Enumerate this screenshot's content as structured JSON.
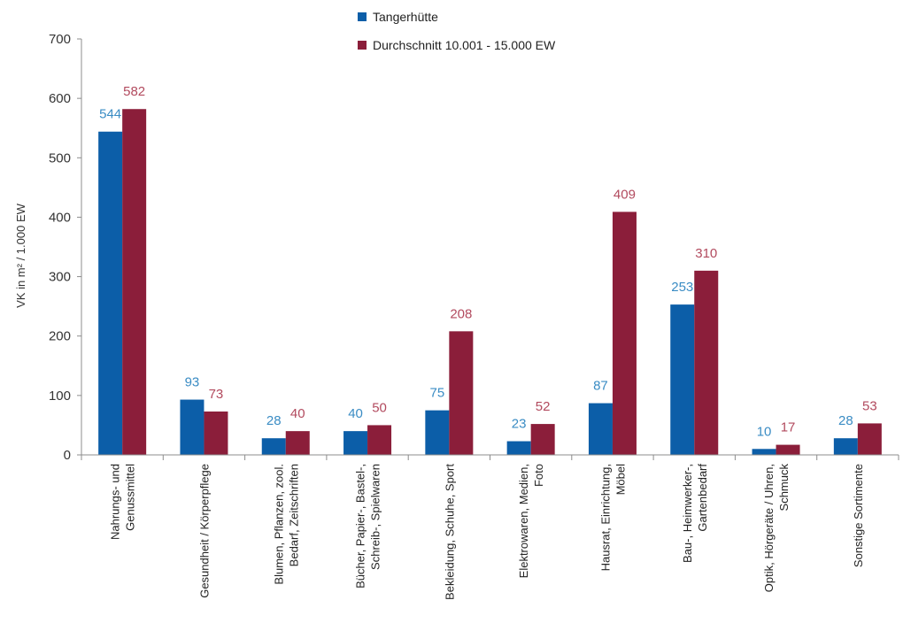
{
  "chart_data": {
    "type": "bar",
    "title": "",
    "ylabel": "VK in m² / 1.000 EW",
    "xlabel": "",
    "ylim": [
      0,
      700
    ],
    "yticks": [
      0,
      100,
      200,
      300,
      400,
      500,
      600,
      700
    ],
    "grid": false,
    "legend_position": "top",
    "categories": [
      [
        "Nahrungs- und",
        "Genussmittel"
      ],
      [
        "Gesundheit / Körperpflege"
      ],
      [
        "Blumen, Pflanzen, zool.",
        "Bedarf, Zeitschriften"
      ],
      [
        "Bücher, Papier-, Bastel-,",
        "Schreib-, Spielwaren"
      ],
      [
        "Bekleidung, Schuhe, Sport"
      ],
      [
        "Elektrowaren, Medien,",
        "Foto"
      ],
      [
        "Hausrat, Einrichtung,",
        "Möbel"
      ],
      [
        "Bau-, Heimwerker-,",
        "Gartenbedarf"
      ],
      [
        "Optik, Hörgeräte / Uhren,",
        "Schmuck"
      ],
      [
        "Sonstige Sortimente"
      ]
    ],
    "series": [
      {
        "name": "Tangerhütte",
        "color": "#0c5ea8",
        "label_color": "#3a8cc4",
        "values": [
          544,
          93,
          28,
          40,
          75,
          23,
          87,
          253,
          10,
          28
        ]
      },
      {
        "name": "Durchschnitt 10.001 - 15.000 EW",
        "color": "#8b1e3a",
        "label_color": "#b24a5e",
        "values": [
          582,
          73,
          40,
          50,
          208,
          52,
          409,
          310,
          17,
          53
        ]
      }
    ]
  }
}
